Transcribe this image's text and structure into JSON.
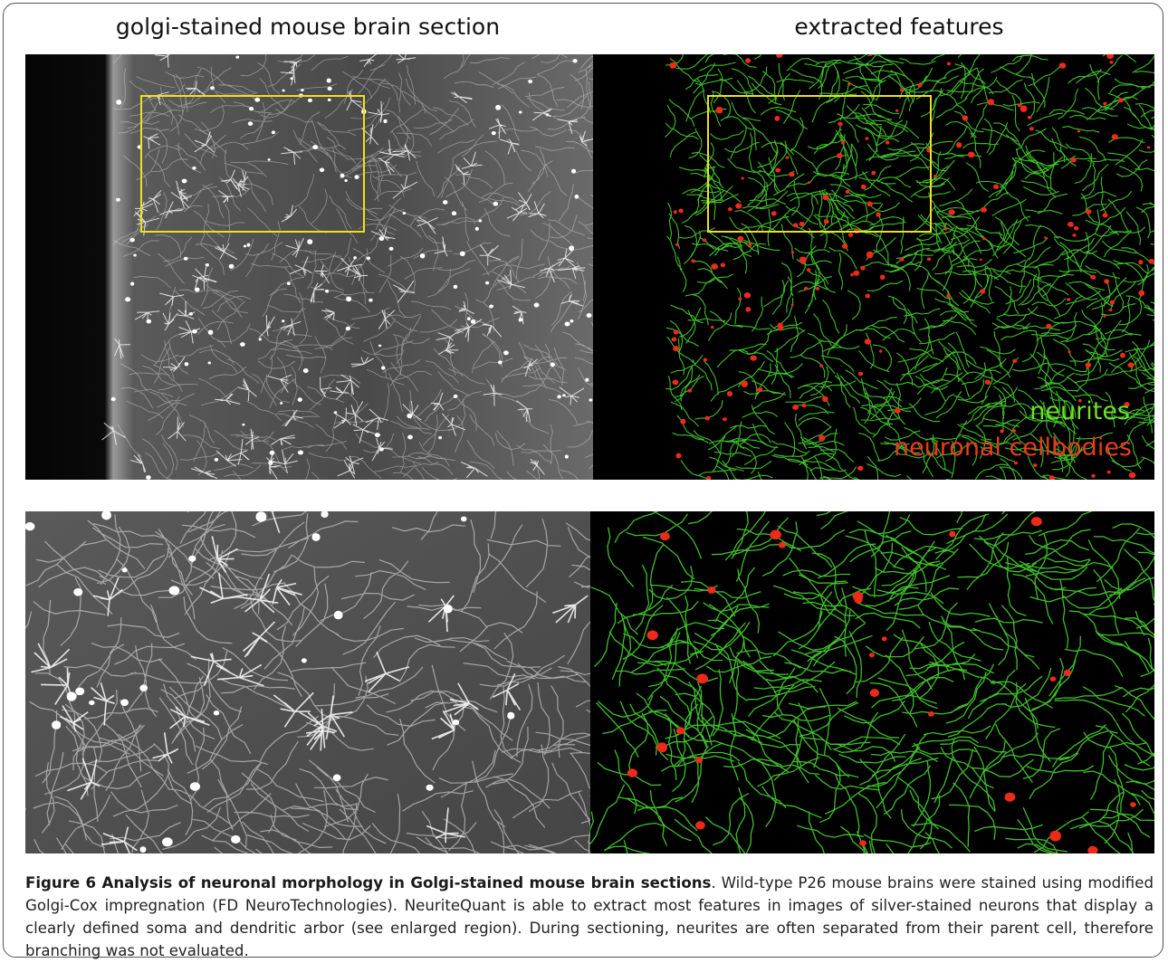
{
  "panels": {
    "left_title": "golgi-stained mouse brain section",
    "right_title": "extracted features"
  },
  "labels": {
    "neurites": "neurites",
    "cellbodies": "neuronal cellbodies"
  },
  "caption": {
    "title": "Figure 6 Analysis of neuronal morphology in Golgi-stained mouse brain sections",
    "text": ". Wild-type P26 mouse brains were stained using modified Golgi-Cox impregnation (FD NeuroTechnologies). NeuriteQuant is able to extract most features in images of silver-stained neurons that display a clearly defined soma and dendritic arbor (see enlarged region). During sectioning, neurites are often separated from their parent cell, therefore branching was not evaluated."
  }
}
